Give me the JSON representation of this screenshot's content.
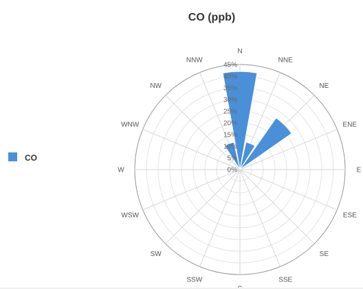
{
  "chart_data": {
    "type": "bar",
    "subtype": "wind-rose",
    "title": "CO (ppb)",
    "categories": [
      "N",
      "NNE",
      "NE",
      "ENE",
      "E",
      "ESE",
      "SE",
      "SSE",
      "S",
      "SSW",
      "SW",
      "WSW",
      "W",
      "WNW",
      "NW",
      "NNW"
    ],
    "series": [
      {
        "name": "CO",
        "color": "#4a90d9",
        "values": [
          42,
          12,
          27,
          0,
          0,
          0,
          0,
          0,
          0,
          0,
          0,
          0,
          0,
          0,
          0,
          12
        ]
      }
    ],
    "radial_ticks": [
      "0%",
      "5%",
      "10%",
      "15%",
      "20%",
      "25%",
      "30%",
      "35%",
      "40%",
      "45%"
    ],
    "rlim": [
      0,
      45
    ],
    "legend_position": "left"
  }
}
